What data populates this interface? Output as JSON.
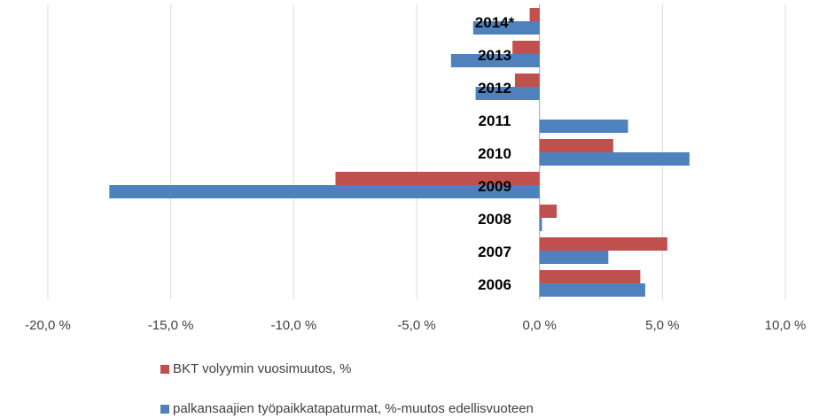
{
  "chart_data": {
    "type": "hbar",
    "categories": [
      "2006",
      "2007",
      "2008",
      "2009",
      "2010",
      "2011",
      "2012",
      "2013",
      "2014*"
    ],
    "series": [
      {
        "name": "BKT volyymin vuosimuutos, %",
        "color": "#c0504d",
        "values": [
          4.1,
          5.2,
          0.7,
          -8.3,
          3.0,
          null,
          -1.0,
          -1.1,
          -0.4
        ]
      },
      {
        "name": "palkansaajien työpaikkatapaturmat, %-muutos edellisvuoteen",
        "color": "#4f81bd",
        "values": [
          4.3,
          2.8,
          0.1,
          -17.5,
          6.1,
          3.6,
          -2.6,
          -3.6,
          -2.7
        ]
      }
    ],
    "xlim": [
      -20,
      10
    ],
    "xticks": [
      {
        "value": -20,
        "label": "-20,0 %"
      },
      {
        "value": -15,
        "label": "-15,0 %"
      },
      {
        "value": -10,
        "label": "-10,0 %"
      },
      {
        "value": -5,
        "label": "-5,0 %"
      },
      {
        "value": 0,
        "label": "0,0 %"
      },
      {
        "value": 5,
        "label": "5,0 %"
      },
      {
        "value": 10,
        "label": "10,0 %"
      }
    ],
    "grid": true,
    "legend": "bottom"
  }
}
